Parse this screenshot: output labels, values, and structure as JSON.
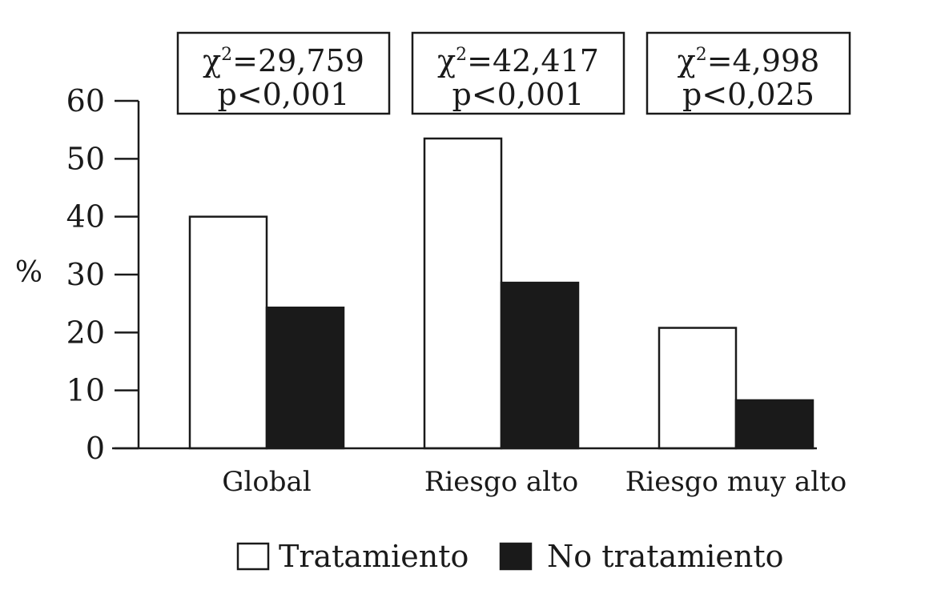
{
  "chart_data": {
    "type": "bar",
    "categories": [
      "Global",
      "Riesgo alto",
      "Riesgo muy alto"
    ],
    "series": [
      {
        "name": "Tratamiento",
        "values": [
          40,
          53.5,
          20.8
        ],
        "color": "#ffffff"
      },
      {
        "name": "No tratamiento",
        "values": [
          24.3,
          28.6,
          8.3
        ],
        "color": "#1a1a1a"
      }
    ],
    "ylabel": "%",
    "xlabel": "",
    "ylim": [
      0,
      60
    ],
    "yticks": [
      0,
      10,
      20,
      30,
      40,
      50,
      60
    ],
    "legend_position": "bottom",
    "grid": false,
    "annotations": [
      {
        "category": "Global",
        "chi_label": "χ",
        "chi_exp": "2",
        "chi_value": "=29,759",
        "p_text": "p<0,001"
      },
      {
        "category": "Riesgo alto",
        "chi_label": "χ",
        "chi_exp": "2",
        "chi_value": "=42,417",
        "p_text": "p<0,001"
      },
      {
        "category": "Riesgo muy alto",
        "chi_label": "χ",
        "chi_exp": "2",
        "chi_value": "=4,998",
        "p_text": "p<0,025"
      }
    ]
  }
}
